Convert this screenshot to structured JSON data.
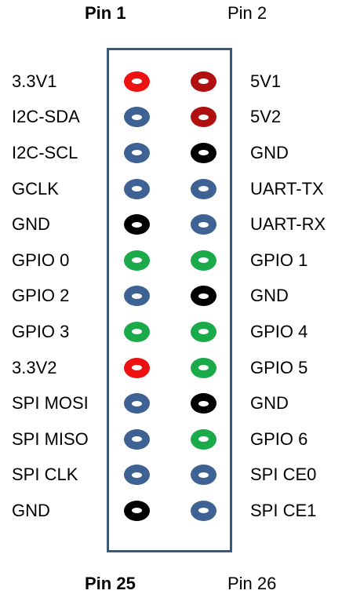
{
  "header": {
    "pin1": "Pin 1",
    "pin2": "Pin 2",
    "pin25": "Pin 25",
    "pin26": "Pin 26"
  },
  "colors": {
    "power_3v3": "#ee1111",
    "power_5v": "#b01010",
    "ground": "#000000",
    "signal": "#3e6293",
    "gpio": "#1aaa4a",
    "border": "#3a5878"
  },
  "rows": [
    {
      "left": {
        "label": "3.3V1",
        "type": "power_3v3"
      },
      "right": {
        "label": "5V1",
        "type": "power_5v"
      }
    },
    {
      "left": {
        "label": "I2C-SDA",
        "type": "signal"
      },
      "right": {
        "label": "5V2",
        "type": "power_5v"
      }
    },
    {
      "left": {
        "label": "I2C-SCL",
        "type": "signal"
      },
      "right": {
        "label": "GND",
        "type": "ground"
      }
    },
    {
      "left": {
        "label": "GCLK",
        "type": "signal"
      },
      "right": {
        "label": "UART-TX",
        "type": "signal"
      }
    },
    {
      "left": {
        "label": "GND",
        "type": "ground"
      },
      "right": {
        "label": "UART-RX",
        "type": "signal"
      }
    },
    {
      "left": {
        "label": "GPIO 0",
        "type": "gpio"
      },
      "right": {
        "label": "GPIO 1",
        "type": "gpio"
      }
    },
    {
      "left": {
        "label": "GPIO 2",
        "type": "signal"
      },
      "right": {
        "label": "GND",
        "type": "ground"
      }
    },
    {
      "left": {
        "label": "GPIO 3",
        "type": "gpio"
      },
      "right": {
        "label": "GPIO 4",
        "type": "gpio"
      }
    },
    {
      "left": {
        "label": "3.3V2",
        "type": "power_3v3"
      },
      "right": {
        "label": "GPIO 5",
        "type": "gpio"
      }
    },
    {
      "left": {
        "label": "SPI MOSI",
        "type": "signal"
      },
      "right": {
        "label": "GND",
        "type": "ground"
      }
    },
    {
      "left": {
        "label": "SPI MISO",
        "type": "signal"
      },
      "right": {
        "label": "GPIO 6",
        "type": "gpio"
      }
    },
    {
      "left": {
        "label": "SPI CLK",
        "type": "signal"
      },
      "right": {
        "label": "SPI CE0",
        "type": "signal"
      }
    },
    {
      "left": {
        "label": "GND",
        "type": "ground"
      },
      "right": {
        "label": "SPI CE1",
        "type": "signal"
      }
    }
  ]
}
